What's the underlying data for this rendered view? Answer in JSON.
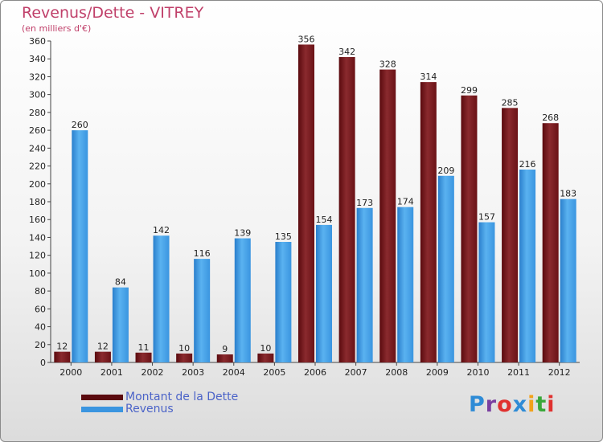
{
  "header": {
    "title": "Revenus/Dette - VITREY",
    "subtitle": "(en milliers d'€)"
  },
  "chart_data": {
    "type": "bar",
    "title": "Revenus/Dette - VITREY",
    "ylabel": "(en milliers d'€)",
    "xlabel": "",
    "categories": [
      "2000",
      "2001",
      "2002",
      "2003",
      "2004",
      "2005",
      "2006",
      "2007",
      "2008",
      "2009",
      "2010",
      "2011",
      "2012"
    ],
    "ylim": [
      0,
      360
    ],
    "yticks": [
      0,
      20,
      40,
      60,
      80,
      100,
      120,
      140,
      160,
      180,
      200,
      220,
      240,
      260,
      280,
      300,
      320,
      340,
      360
    ],
    "grid": false,
    "legend_position": "bottom-left",
    "series": [
      {
        "name": "Montant de la Dette",
        "color": "#7a1a1e",
        "values": [
          12,
          12,
          11,
          10,
          9,
          10,
          356,
          342,
          328,
          314,
          299,
          285,
          268
        ]
      },
      {
        "name": "Revenus",
        "color": "#3a95e0",
        "values": [
          260,
          84,
          142,
          116,
          139,
          135,
          154,
          173,
          174,
          209,
          157,
          216,
          183
        ]
      }
    ]
  },
  "legend": {
    "items": [
      {
        "label": "Montant de la Dette",
        "color": "#6a0a0e"
      },
      {
        "label": "Revenus",
        "color": "#3a95e0"
      }
    ]
  },
  "logo": {
    "letters": [
      {
        "ch": "P",
        "color": "#2e8bd6"
      },
      {
        "ch": "r",
        "color": "#7a3fa0"
      },
      {
        "ch": "o",
        "color": "#e0312f"
      },
      {
        "ch": "x",
        "color": "#2e8bd6"
      },
      {
        "ch": "i",
        "color": "#f2a21a"
      },
      {
        "ch": "t",
        "color": "#3aa83a"
      },
      {
        "ch": "i",
        "color": "#e0312f"
      }
    ]
  }
}
